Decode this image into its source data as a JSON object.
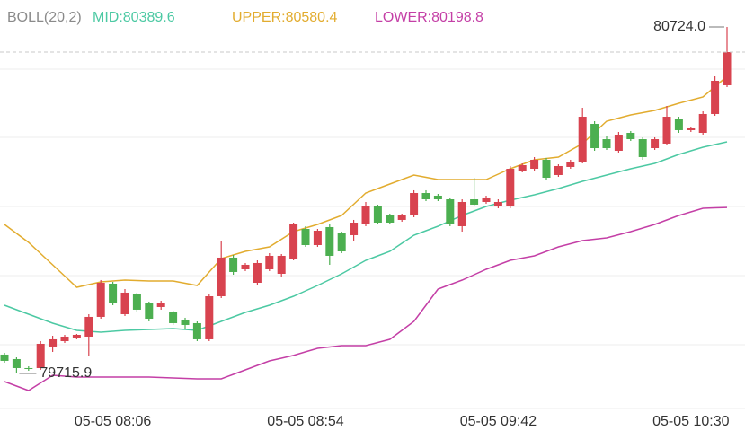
{
  "chart_data": {
    "type": "candlestick",
    "indicator": "BOLL(20,2)",
    "indicator_color": "#8a8a8a",
    "up_color": "#d8434f",
    "down_color": "#4caf50",
    "ylim": [
      79613.9,
      80802.4
    ],
    "max_label": "80724.0",
    "min_label": "79715.9",
    "categories": [
      null,
      null,
      null,
      null,
      null,
      null,
      null,
      null,
      null,
      "05-05 08:06",
      null,
      null,
      null,
      null,
      null,
      null,
      null,
      null,
      null,
      null,
      null,
      null,
      null,
      null,
      null,
      "05-05 08:54",
      null,
      null,
      null,
      null,
      null,
      null,
      null,
      null,
      null,
      null,
      null,
      null,
      null,
      null,
      null,
      "05-05 09:42",
      null,
      null,
      null,
      null,
      null,
      null,
      null,
      null,
      null,
      null,
      null,
      null,
      null,
      null,
      null,
      "05-05 10:30",
      null,
      null,
      null
    ],
    "open": [
      79770.7,
      79757.6,
      79731.5,
      79731.5,
      79794.2,
      79809.8,
      79820.3,
      79822.9,
      79880.4,
      79977.0,
      79888.2,
      79945.7,
      79919.5,
      79909.1,
      79893.4,
      79869.9,
      79862.1,
      79815.1,
      79940.4,
      80052.8,
      80018.8,
      79979.6,
      80018.8,
      80005.7,
      80050.1,
      80136.3,
      80089.3,
      80141.6,
      80123.3,
      80118.1,
      80149.4,
      80201.6,
      80175.5,
      80162.5,
      80175.5,
      80240.8,
      80233.0,
      80222.5,
      80144.2,
      80222.5,
      80214.7,
      80201.6,
      80201.6,
      80306.1,
      80311.3,
      80337.5,
      80293.1,
      80316.6,
      80332.2,
      80441.9,
      80397.5,
      80363.6,
      80415.8,
      80397.5,
      80371.4,
      80384.5,
      80457.6,
      80423.7,
      80415.8,
      80470.7,
      80554.3
    ],
    "high": [
      79775.9,
      79762.8,
      79736.7,
      79809.8,
      79825.5,
      79828.1,
      79830.7,
      79888.2,
      79987.5,
      79982.2,
      79961.3,
      79950.9,
      79924.8,
      79927.4,
      79898.6,
      79877.8,
      79867.3,
      79945.7,
      80102.4,
      80060.6,
      80037.1,
      80044.9,
      80065.8,
      80063.2,
      80154.6,
      80144.2,
      80136.3,
      80149.4,
      80128.5,
      80162.5,
      80214.7,
      80206.9,
      80180.7,
      80180.7,
      80248.7,
      80248.7,
      80238.2,
      80227.8,
      80222.5,
      80285.2,
      80233.0,
      80222.5,
      80319.2,
      80327.0,
      80345.3,
      80342.7,
      80324.4,
      80337.5,
      80489.0,
      80449.8,
      80405.4,
      80418.4,
      80421.0,
      80402.8,
      80402.8,
      80494.2,
      80462.8,
      80434.1,
      80478.5,
      80580.4,
      80724.0
    ],
    "low": [
      79747.2,
      79715.9,
      79723.6,
      79726.3,
      79778.5,
      79804.6,
      79815.1,
      79765.4,
      79875.1,
      79914.3,
      79883.0,
      79896.0,
      79867.3,
      79901.3,
      79856.9,
      79846.4,
      79809.8,
      79809.8,
      79935.2,
      80003.1,
      80013.6,
      79971.8,
      80013.6,
      79997.9,
      80044.9,
      80084.1,
      80084.1,
      80031.9,
      80065.8,
      80102.4,
      80144.2,
      80149.4,
      80149.4,
      80157.2,
      80170.3,
      80217.3,
      80217.3,
      80144.2,
      80128.5,
      80201.6,
      80209.5,
      80196.4,
      80196.4,
      80300.9,
      80306.1,
      80280.0,
      80287.8,
      80311.3,
      80327.0,
      80363.6,
      80366.2,
      80358.4,
      80392.3,
      80337.5,
      80366.2,
      80379.3,
      80415.8,
      80418.4,
      80410.6,
      80465.5,
      80549.0
    ],
    "close": [
      79752.4,
      79731.5,
      79728.9,
      79802.0,
      79815.1,
      79822.9,
      79828.1,
      79880.4,
      79979.6,
      79919.5,
      79950.9,
      79901.3,
      79875.1,
      79919.5,
      79862.1,
      79856.9,
      79815.1,
      79940.4,
      80052.8,
      80011.0,
      80031.9,
      80037.1,
      80058.0,
      80058.0,
      80149.4,
      80089.3,
      80131.1,
      80058.0,
      80071.0,
      80154.6,
      80201.6,
      80154.6,
      80154.6,
      80175.5,
      80240.8,
      80222.5,
      80222.5,
      80149.4,
      80214.7,
      80206.9,
      80227.8,
      80214.7,
      80311.3,
      80321.8,
      80337.5,
      80285.2,
      80319.2,
      80332.2,
      80462.8,
      80371.4,
      80371.4,
      80410.6,
      80397.5,
      80345.3,
      80397.5,
      80462.8,
      80423.7,
      80428.9,
      80470.7,
      80567.3,
      80650.9
    ],
    "series": [
      {
        "name": "MID:80389.6",
        "color": "#4cc9a3",
        "values": [
          79914.3,
          79901.3,
          79888.2,
          79875.2,
          79862.1,
          79851.7,
          79841.2,
          79838.6,
          79836.0,
          79838.6,
          79841.2,
          79842.5,
          79843.8,
          79845.1,
          79846.4,
          79843.8,
          79841.2,
          79854.3,
          79867.3,
          79880.4,
          79893.4,
          79903.9,
          79914.3,
          79927.4,
          79940.4,
          79956.1,
          79971.8,
          79988.8,
          80005.7,
          80025.3,
          80044.9,
          80058.0,
          80071.0,
          80094.6,
          80118.1,
          80131.2,
          80144.2,
          80159.9,
          80175.5,
          80188.6,
          80201.6,
          80210.8,
          80219.9,
          80227.8,
          80235.6,
          80244.8,
          80253.9,
          80264.4,
          80274.8,
          80284.0,
          80293.1,
          80302.2,
          80311.3,
          80319.2,
          80327.0,
          80340.1,
          80353.1,
          80363.6,
          80374.0,
          80381.8,
          80389.6
        ]
      },
      {
        "name": "UPPER:80580.4",
        "color": "#e2ac2f",
        "values": [
          80149.4,
          80123.3,
          80097.2,
          80064.6,
          80031.9,
          79999.3,
          79966.6,
          79974.4,
          79982.2,
          79984.9,
          79987.5,
          79986.2,
          79984.8,
          79984.8,
          79984.8,
          79978.3,
          79971.8,
          80011.0,
          80050.1,
          80060.6,
          80071.0,
          80077.6,
          80084.1,
          80106.3,
          80128.5,
          80139.0,
          80149.4,
          80162.5,
          80175.5,
          80208.2,
          80240.8,
          80253.9,
          80266.9,
          80280.0,
          80293.1,
          80286.6,
          80280.0,
          80280.0,
          80280.0,
          80280.0,
          80280.0,
          80295.7,
          80311.3,
          80324.4,
          80337.5,
          80341.4,
          80345.3,
          80364.9,
          80384.5,
          80417.2,
          80449.8,
          80459.0,
          80468.1,
          80474.6,
          80481.1,
          80491.6,
          80502.0,
          80511.2,
          80520.3,
          80550.4,
          80580.4
        ]
      },
      {
        "name": "LOWER:80198.8",
        "color": "#c43fa6",
        "values": [
          79692.3,
          79679.3,
          79666.2,
          79688.4,
          79710.6,
          79708.0,
          79705.4,
          79705.4,
          79705.4,
          79705.4,
          79705.4,
          79705.4,
          79705.4,
          79704.1,
          79702.7,
          79701.4,
          79700.1,
          79700.1,
          79700.1,
          79713.2,
          79726.3,
          79739.4,
          79752.4,
          79760.3,
          79768.2,
          79778.6,
          79789.0,
          79792.9,
          79796.8,
          79796.8,
          79796.8,
          79806.0,
          79815.1,
          79841.2,
          79867.3,
          79914.3,
          79961.3,
          79974.4,
          79987.5,
          80003.2,
          80018.8,
          80031.9,
          80044.9,
          80051.5,
          80058.0,
          80071.1,
          80084.1,
          80093.3,
          80102.4,
          80106.3,
          80110.2,
          80119.4,
          80128.5,
          80139.0,
          80149.4,
          80162.5,
          80175.5,
          80186.0,
          80196.4,
          80197.6,
          80198.8
        ]
      }
    ]
  }
}
